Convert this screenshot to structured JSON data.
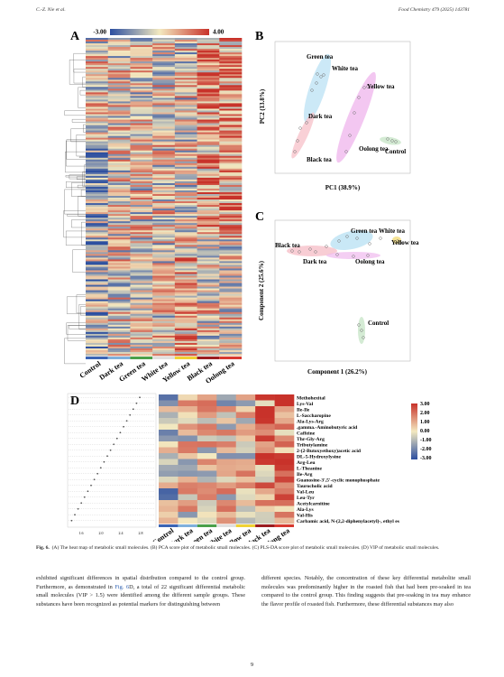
{
  "header": {
    "left": "C.-Z. Nie et al.",
    "right": "Food Chemistry 479 (2025) 143781"
  },
  "figure": {
    "samples": [
      "Control",
      "Dark tea",
      "Green tea",
      "White tea",
      "Yellow tea",
      "Black tea",
      "Oolong tea"
    ],
    "panel_a": {
      "label": "A",
      "scale_min": "-3.00",
      "scale_max": "4.00"
    },
    "panel_b": {
      "label": "B",
      "x_label": "PC1 (38.9%)",
      "y_label": "PC2 (13.8%)",
      "groups": [
        "Green tea",
        "White tea",
        "Yellow tea",
        "Dark tea",
        "Oolong tea",
        "Control",
        "Black tea"
      ]
    },
    "panel_c": {
      "label": "C",
      "x_label": "Component 1 (26.2%)",
      "y_label": "Component 2 (25.6%)",
      "groups": [
        "Black tea",
        "Green tea",
        "White tea",
        "Yellow tea",
        "Dark tea",
        "Oolong tea",
        "Control"
      ]
    },
    "panel_d": {
      "label": "D",
      "metabolites": [
        "Methohexital",
        "Lys-Val",
        "Ile-Ile",
        "L-Saccharopine",
        "Ala-Lys-Arg",
        ".gamma.-Aminobutyric acid",
        "Caffeine",
        "Thr-Gly-Arg",
        "Tributylamine",
        "2-(2-Butoxyethoxy)acetic acid",
        "DL-5-Hydroxylysine",
        "Arg-Leu",
        "L-Theanine",
        "Ile-Arg",
        "Guanosine-3',5'-cyclic monophosphate",
        "Taurocholic acid",
        "Val-Leu",
        "Leu-Tyr",
        "Acetylcarnitine",
        "Ala-Lys",
        "Val-His",
        "Carbamic acid, N-(2,2-diphenylacetyl)-, ethyl es"
      ],
      "scale": [
        "3.00",
        "2.00",
        "1.00",
        "0.00",
        "-1.00",
        "-2.00",
        "-3.00"
      ],
      "vip_ticks": [
        "1.6",
        "2.0",
        "2.4",
        "2.8"
      ]
    }
  },
  "caption": {
    "label": "Fig. 6.",
    "text": "(A) The heat map of metabolic small molecules. (B) PCA score plot of metabolic small molecules. (C) PLS-DA score plot of metabolic small molecules. (D) VIP of metabolic small molecules."
  },
  "body": {
    "left_1": "exhibited significant differences in spatial distribution compared to the control group. Furthermore, as demonstrated in ",
    "left_link": "Fig. 6",
    "left_2": "D, a total of 22 significant differential metabolic small molecules (VIP > 1.5) were identified among the different sample groups. These substances have been recognized as potential markers for distinguishing between",
    "right": "different species. Notably, the concentration of these key differential metabolite small molecules was predominantly higher in the roasted fish that had been pre-soaked in tea compared to the control group. This finding suggests that pre-soaking in tea may enhance the flavor profile of roasted fish. Furthermore, these differential substances may also"
  },
  "page_number": "9"
}
